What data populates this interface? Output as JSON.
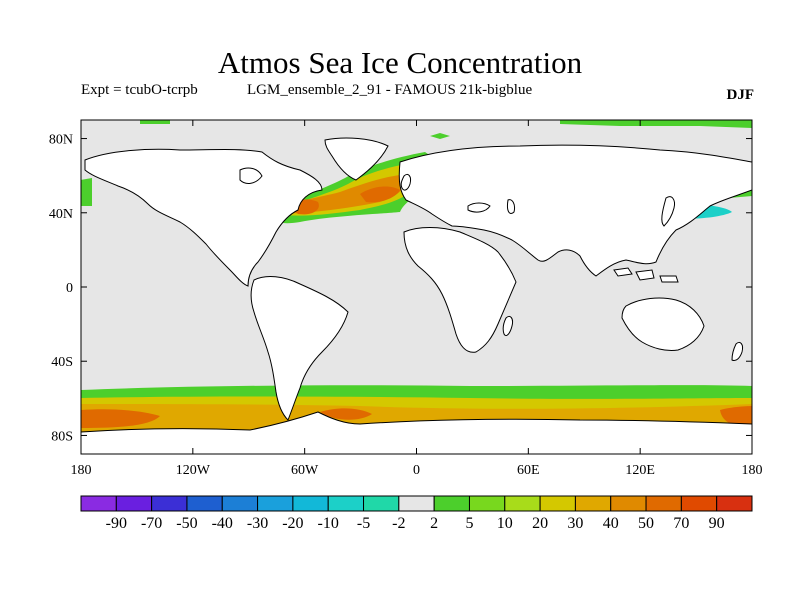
{
  "title": "Atmos Sea Ice Concentration",
  "subtitle_left": "Expt = tcubO-tcrpb",
  "subtitle_mid": "LGM_ensemble_2_91 - FAMOUS 21k-bigblue",
  "season": "DJF",
  "colors": {
    "land": "#ffffff",
    "neutral": "#e6e6e6",
    "coast": "#000000"
  },
  "map": {
    "lon_range": [
      -180,
      180
    ],
    "lat_range": [
      -90,
      90
    ],
    "x_ticks": [
      {
        "lon": -180,
        "label": "180"
      },
      {
        "lon": -120,
        "label": "120W"
      },
      {
        "lon": -60,
        "label": "60W"
      },
      {
        "lon": 0,
        "label": "0"
      },
      {
        "lon": 60,
        "label": "60E"
      },
      {
        "lon": 120,
        "label": "120E"
      },
      {
        "lon": 180,
        "label": "180"
      }
    ],
    "y_ticks": [
      {
        "lat": 80,
        "label": "80N"
      },
      {
        "lat": 40,
        "label": "40N"
      },
      {
        "lat": 0,
        "label": "0"
      },
      {
        "lat": -40,
        "label": "40S"
      },
      {
        "lat": -80,
        "label": "80S"
      }
    ]
  },
  "colorbar": {
    "labels": [
      "-90",
      "-70",
      "-50",
      "-40",
      "-30",
      "-20",
      "-10",
      "-5",
      "-2",
      "2",
      "5",
      "10",
      "20",
      "30",
      "40",
      "50",
      "70",
      "90"
    ],
    "colors": [
      "#8a2be2",
      "#6a1fe0",
      "#3b2fd6",
      "#1e5fd0",
      "#1c7fd6",
      "#1aa0dc",
      "#12b8d8",
      "#1cd0c8",
      "#20d8a8",
      "#e6e6e6",
      "#4ccf2c",
      "#78d81e",
      "#a8dc1a",
      "#d4c800",
      "#e0a800",
      "#e08a00",
      "#e06a00",
      "#e04a00",
      "#d83010"
    ]
  }
}
